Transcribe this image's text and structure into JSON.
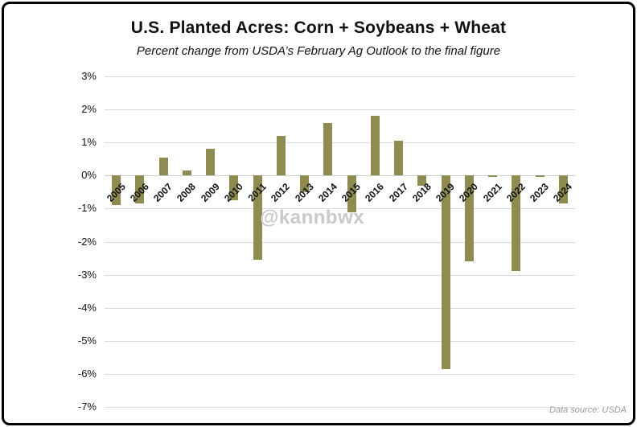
{
  "chart_data": {
    "type": "bar",
    "title": "U.S. Planted Acres: Corn + Soybeans + Wheat",
    "subtitle": "Percent change from USDA’s February Ag Outlook to the final figure",
    "categories": [
      "2005",
      "2006",
      "2007",
      "2008",
      "2009",
      "2010",
      "2011",
      "2012",
      "2013",
      "2014",
      "2015",
      "2016",
      "2017",
      "2018",
      "2019",
      "2020",
      "2021",
      "2022",
      "2023",
      "2024"
    ],
    "values": [
      -0.9,
      -0.85,
      0.55,
      0.15,
      0.8,
      -0.75,
      -2.55,
      1.2,
      -0.5,
      1.6,
      -1.1,
      1.8,
      1.05,
      -0.3,
      -5.85,
      -2.6,
      -0.05,
      -2.9,
      -0.05,
      -0.85
    ],
    "ylim": [
      -7,
      3
    ],
    "yticks": [
      3,
      2,
      1,
      0,
      -1,
      -2,
      -3,
      -4,
      -5,
      -6,
      -7
    ],
    "ytick_labels": [
      "3%",
      "2%",
      "1%",
      "0%",
      "-1%",
      "-2%",
      "-3%",
      "-4%",
      "-5%",
      "-6%",
      "-7%"
    ],
    "grid": true,
    "legend": "none",
    "bar_color": "#8e8c50",
    "watermark": "@kannbwx",
    "source": "Data source: USDA"
  }
}
